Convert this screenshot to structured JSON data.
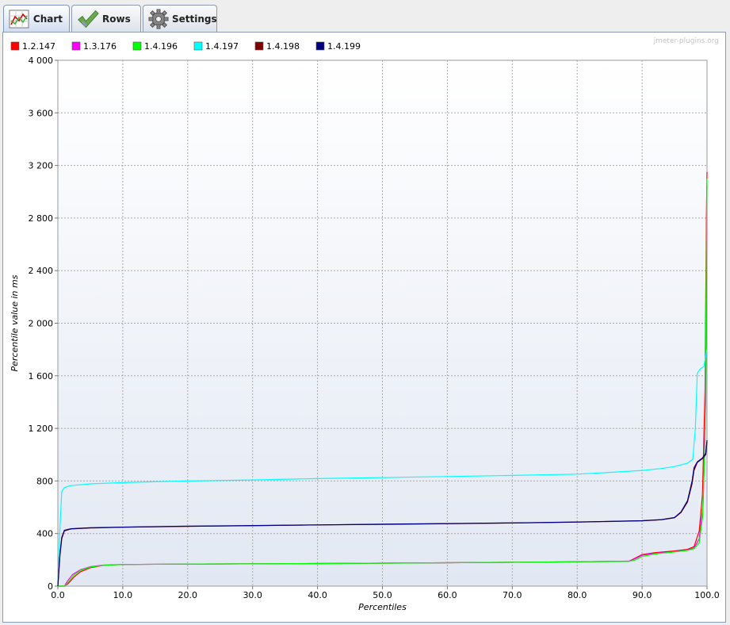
{
  "tabs": [
    {
      "label": "Chart",
      "icon": "chart-icon",
      "active": true
    },
    {
      "label": "Rows",
      "icon": "checkmark-icon",
      "active": false
    },
    {
      "label": "Settings",
      "icon": "gear-icon",
      "active": false
    }
  ],
  "watermark": "jmeter-plugins.org",
  "chart_data": {
    "type": "line",
    "xlabel": "Percentiles",
    "ylabel": "Percentile value in ms",
    "xlim": [
      0,
      100
    ],
    "ylim": [
      0,
      4000
    ],
    "x_ticks": [
      "0.0",
      "10.0",
      "20.0",
      "30.0",
      "40.0",
      "50.0",
      "60.0",
      "70.0",
      "80.0",
      "90.0",
      "100.0"
    ],
    "x_tick_values": [
      0,
      10,
      20,
      30,
      40,
      50,
      60,
      70,
      80,
      90,
      100
    ],
    "y_ticks": [
      "0",
      "400",
      "800",
      "1 200",
      "1 600",
      "2 000",
      "2 400",
      "2 800",
      "3 200",
      "3 600",
      "4 000"
    ],
    "y_tick_values": [
      0,
      400,
      800,
      1200,
      1600,
      2000,
      2400,
      2800,
      3200,
      3600,
      4000
    ],
    "grid": true,
    "legend_position": "top-left",
    "series": [
      {
        "name": "1.2.147",
        "color": "#ff0000",
        "points": [
          [
            0,
            0
          ],
          [
            1,
            0
          ],
          [
            1.6,
            20
          ],
          [
            2.5,
            70
          ],
          [
            3.5,
            110
          ],
          [
            5,
            140
          ],
          [
            7,
            158
          ],
          [
            10,
            165
          ],
          [
            20,
            168
          ],
          [
            40,
            172
          ],
          [
            60,
            178
          ],
          [
            80,
            185
          ],
          [
            88,
            190
          ],
          [
            89,
            215
          ],
          [
            90,
            240
          ],
          [
            92,
            255
          ],
          [
            95,
            268
          ],
          [
            97,
            280
          ],
          [
            98,
            300
          ],
          [
            98.8,
            420
          ],
          [
            99.3,
            700
          ],
          [
            99.7,
            1500
          ],
          [
            99.9,
            2800
          ],
          [
            100,
            3150
          ]
        ]
      },
      {
        "name": "1.3.176",
        "color": "#ff00ff",
        "points": [
          [
            0,
            0
          ],
          [
            1,
            0
          ],
          [
            1.5,
            40
          ],
          [
            2.3,
            90
          ],
          [
            3.5,
            125
          ],
          [
            5,
            148
          ],
          [
            7,
            160
          ],
          [
            10,
            165
          ],
          [
            20,
            168
          ],
          [
            40,
            172
          ],
          [
            60,
            178
          ],
          [
            80,
            185
          ],
          [
            88,
            190
          ],
          [
            89,
            210
          ],
          [
            90,
            235
          ],
          [
            92,
            250
          ],
          [
            95,
            262
          ],
          [
            97,
            275
          ],
          [
            98,
            290
          ],
          [
            98.8,
            360
          ],
          [
            99.4,
            620
          ],
          [
            99.8,
            1400
          ],
          [
            100,
            3050
          ]
        ]
      },
      {
        "name": "1.4.196",
        "color": "#00ff00",
        "points": [
          [
            0,
            0
          ],
          [
            1,
            0
          ],
          [
            1.6,
            30
          ],
          [
            2.5,
            85
          ],
          [
            3.5,
            120
          ],
          [
            5,
            145
          ],
          [
            7,
            158
          ],
          [
            10,
            165
          ],
          [
            20,
            168
          ],
          [
            40,
            172
          ],
          [
            60,
            178
          ],
          [
            80,
            185
          ],
          [
            88,
            188
          ],
          [
            89,
            200
          ],
          [
            90,
            225
          ],
          [
            92,
            245
          ],
          [
            95,
            260
          ],
          [
            97,
            272
          ],
          [
            98,
            285
          ],
          [
            98.8,
            330
          ],
          [
            99.3,
            520
          ],
          [
            99.7,
            1100
          ],
          [
            99.9,
            2500
          ],
          [
            100,
            3100
          ]
        ]
      },
      {
        "name": "1.4.197",
        "color": "#00ffff",
        "points": [
          [
            0,
            0
          ],
          [
            0.3,
            420
          ],
          [
            0.6,
            720
          ],
          [
            1,
            750
          ],
          [
            2,
            765
          ],
          [
            5,
            778
          ],
          [
            10,
            788
          ],
          [
            20,
            800
          ],
          [
            30,
            808
          ],
          [
            40,
            818
          ],
          [
            50,
            826
          ],
          [
            60,
            834
          ],
          [
            70,
            842
          ],
          [
            80,
            852
          ],
          [
            85,
            865
          ],
          [
            90,
            880
          ],
          [
            93,
            895
          ],
          [
            95,
            910
          ],
          [
            97,
            935
          ],
          [
            97.8,
            965
          ],
          [
            98.2,
            1200
          ],
          [
            98.5,
            1620
          ],
          [
            99,
            1655
          ],
          [
            99.5,
            1670
          ],
          [
            99.8,
            1750
          ],
          [
            100,
            1800
          ]
        ]
      },
      {
        "name": "1.4.198",
        "color": "#800000",
        "points": [
          [
            0,
            0
          ],
          [
            0.3,
            220
          ],
          [
            0.6,
            360
          ],
          [
            1,
            420
          ],
          [
            2,
            435
          ],
          [
            5,
            442
          ],
          [
            10,
            448
          ],
          [
            20,
            455
          ],
          [
            30,
            460
          ],
          [
            40,
            466
          ],
          [
            50,
            470
          ],
          [
            60,
            475
          ],
          [
            70,
            480
          ],
          [
            80,
            487
          ],
          [
            90,
            497
          ],
          [
            93,
            505
          ],
          [
            95,
            520
          ],
          [
            96,
            560
          ],
          [
            97,
            640
          ],
          [
            97.7,
            780
          ],
          [
            98,
            880
          ],
          [
            98.5,
            940
          ],
          [
            99.3,
            970
          ],
          [
            99.8,
            1000
          ],
          [
            100,
            1100
          ]
        ]
      },
      {
        "name": "1.4.199",
        "color": "#000080",
        "points": [
          [
            0,
            0
          ],
          [
            0.3,
            240
          ],
          [
            0.6,
            370
          ],
          [
            1,
            425
          ],
          [
            2,
            437
          ],
          [
            5,
            444
          ],
          [
            10,
            449
          ],
          [
            20,
            456
          ],
          [
            30,
            461
          ],
          [
            40,
            466
          ],
          [
            50,
            471
          ],
          [
            60,
            476
          ],
          [
            70,
            481
          ],
          [
            80,
            488
          ],
          [
            90,
            498
          ],
          [
            93,
            506
          ],
          [
            95,
            522
          ],
          [
            96,
            565
          ],
          [
            97,
            650
          ],
          [
            97.7,
            800
          ],
          [
            98,
            900
          ],
          [
            98.5,
            945
          ],
          [
            99.3,
            975
          ],
          [
            99.8,
            1010
          ],
          [
            100,
            1110
          ]
        ]
      }
    ]
  }
}
